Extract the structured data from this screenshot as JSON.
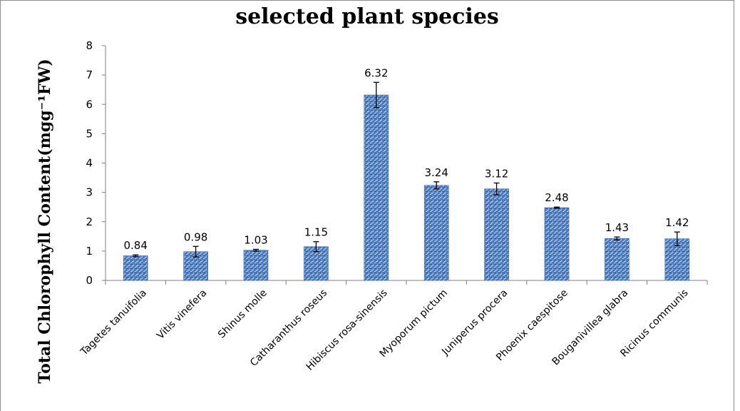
{
  "chart_data": {
    "type": "bar",
    "title": "selected plant species",
    "ylabel": "Total Chlorophyll Content(mgg⁻¹FW)",
    "xlabel": "",
    "ylim": [
      0,
      8
    ],
    "yticks": [
      0,
      1,
      2,
      3,
      4,
      5,
      6,
      7,
      8
    ],
    "grid": false,
    "legend": "none",
    "bar_color": "#4f7ec2",
    "categories": [
      "Tagetes tanuifolia",
      "Vitis vinefera",
      "Shinus molle",
      "Catharanthus roseus",
      "Hibiscus rosa-sinensis",
      "Myoporum pictum",
      "Juniperus procera",
      "Phoenix caespitose",
      "Bouganivillea glabra",
      "Ricinus communis"
    ],
    "values": [
      0.84,
      0.98,
      1.03,
      1.15,
      6.32,
      3.24,
      3.12,
      2.48,
      1.43,
      1.42
    ],
    "data_labels": [
      "0.84",
      "0.98",
      "1.03",
      "1.15",
      "6.32",
      "3.24",
      "3.12",
      "2.48",
      "1.43",
      "1.42"
    ],
    "errors": [
      0.03,
      0.18,
      0.03,
      0.17,
      0.43,
      0.12,
      0.2,
      0.02,
      0.05,
      0.23
    ]
  }
}
